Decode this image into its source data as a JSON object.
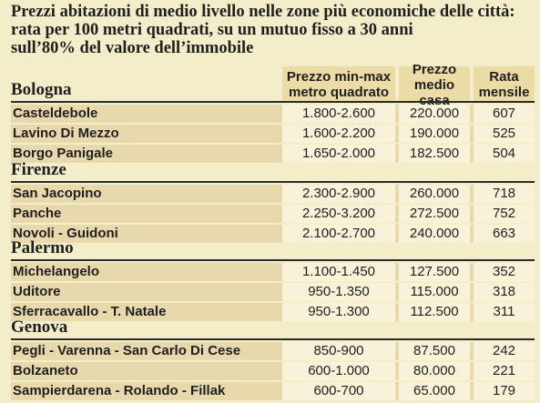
{
  "title": {
    "line1": "Prezzi abitazioni di medio livello nelle zone più economiche delle città:",
    "line2": "rata per 100 metri quadrati, su un mutuo fisso a 30 anni",
    "line3": "sull’80%  del valore dell’immobile"
  },
  "columns": {
    "price_range": [
      "Prezzo min-max",
      "metro quadrato"
    ],
    "avg_price": [
      "Prezzo",
      "medio casa"
    ],
    "installment": [
      "Rata",
      "mensile"
    ]
  },
  "cities": [
    {
      "name": "Bologna",
      "rows": [
        {
          "zone": "Casteldebole",
          "range": "1.800-2.600",
          "avg": "220.000",
          "rata": "607"
        },
        {
          "zone": "Lavino Di Mezzo",
          "range": "1.600-2.200",
          "avg": "190.000",
          "rata": "525"
        },
        {
          "zone": "Borgo Panigale",
          "range": "1.650-2.000",
          "avg": "182.500",
          "rata": "504"
        }
      ]
    },
    {
      "name": "Firenze",
      "rows": [
        {
          "zone": "San Jacopino",
          "range": "2.300-2.900",
          "avg": "260.000",
          "rata": "718"
        },
        {
          "zone": "Panche",
          "range": "2.250-3.200",
          "avg": "272.500",
          "rata": "752"
        },
        {
          "zone": "Novoli - Guidoni",
          "range": "2.100-2.700",
          "avg": "240.000",
          "rata": "663"
        }
      ]
    },
    {
      "name": "Palermo",
      "rows": [
        {
          "zone": "Michelangelo",
          "range": "1.100-1.450",
          "avg": "127.500",
          "rata": "352"
        },
        {
          "zone": "Uditore",
          "range": "950-1.350",
          "avg": "115.000",
          "rata": "318"
        },
        {
          "zone": "Sferracavallo - T. Natale",
          "range": "950-1.300",
          "avg": "112.500",
          "rata": "311"
        }
      ]
    },
    {
      "name": "Genova",
      "rows": [
        {
          "zone": "Pegli - Varenna - San Carlo Di Cese",
          "range": "850-900",
          "avg": "87.500",
          "rata": "242"
        },
        {
          "zone": "Bolzaneto",
          "range": "600-1.000",
          "avg": "80.000",
          "rata": "221"
        },
        {
          "zone": "Sampierdarena - Rolando - Fillak",
          "range": "600-700",
          "avg": "65.000",
          "rata": "179"
        }
      ]
    }
  ]
}
